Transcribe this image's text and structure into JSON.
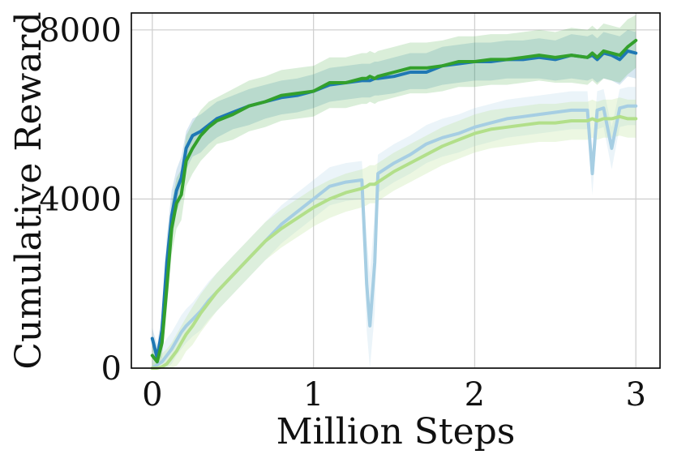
{
  "chart_data": {
    "type": "line",
    "title": "",
    "xlabel": "Million Steps",
    "ylabel": "Cumulative Reward",
    "xlim": [
      -0.13,
      3.15
    ],
    "ylim": [
      0,
      8400
    ],
    "xticks": [
      0,
      1,
      2,
      3
    ],
    "yticks": [
      0,
      4000,
      8000
    ],
    "xtick_labels": [
      "0",
      "1",
      "2",
      "3"
    ],
    "ytick_labels": [
      "0",
      "4000",
      "8000"
    ],
    "grid": true,
    "legend": "none",
    "bands": "shaded min-max range around each series",
    "x": [
      0.0,
      0.03,
      0.06,
      0.09,
      0.12,
      0.15,
      0.18,
      0.21,
      0.25,
      0.3,
      0.35,
      0.4,
      0.5,
      0.6,
      0.7,
      0.8,
      0.9,
      1.0,
      1.1,
      1.2,
      1.3,
      1.33,
      1.35,
      1.38,
      1.4,
      1.5,
      1.6,
      1.7,
      1.8,
      1.9,
      2.0,
      2.1,
      2.2,
      2.3,
      2.4,
      2.5,
      2.6,
      2.7,
      2.73,
      2.76,
      2.8,
      2.85,
      2.9,
      2.95,
      3.0
    ],
    "series": [
      {
        "color": "#1f78b4",
        "opacity": 1.0,
        "band_opacity": 0.18,
        "values": [
          700,
          250,
          900,
          2500,
          3600,
          4200,
          4500,
          5200,
          5500,
          5600,
          5750,
          5900,
          6050,
          6200,
          6300,
          6400,
          6450,
          6550,
          6700,
          6750,
          6800,
          6800,
          6800,
          6850,
          6850,
          6900,
          7000,
          7000,
          7150,
          7200,
          7250,
          7250,
          7300,
          7300,
          7350,
          7300,
          7400,
          7350,
          7400,
          7300,
          7450,
          7400,
          7300,
          7500,
          7450
        ],
        "lower": [
          450,
          0,
          500,
          1900,
          3000,
          3700,
          4000,
          4700,
          5000,
          5100,
          5300,
          5450,
          5650,
          5750,
          5900,
          6000,
          6050,
          6150,
          6300,
          6350,
          6400,
          6400,
          6400,
          6450,
          6450,
          6500,
          6600,
          6600,
          6700,
          6750,
          6800,
          6800,
          6850,
          6850,
          6850,
          6800,
          6850,
          6800,
          6850,
          6750,
          6850,
          6800,
          6700,
          6900,
          6850
        ],
        "upper": [
          950,
          550,
          1300,
          3100,
          4200,
          4700,
          5000,
          5600,
          5900,
          6000,
          6150,
          6300,
          6450,
          6600,
          6700,
          6800,
          6850,
          6950,
          7100,
          7150,
          7200,
          7200,
          7200,
          7250,
          7250,
          7350,
          7450,
          7450,
          7600,
          7650,
          7700,
          7700,
          7750,
          7750,
          7800,
          7750,
          7900,
          7850,
          7900,
          7800,
          7950,
          7900,
          7850,
          8000,
          7950
        ]
      },
      {
        "color": "#33a02c",
        "opacity": 1.0,
        "band_opacity": 0.18,
        "values": [
          300,
          150,
          600,
          1900,
          3300,
          3900,
          4100,
          4900,
          5200,
          5500,
          5700,
          5850,
          6000,
          6200,
          6300,
          6450,
          6500,
          6550,
          6750,
          6750,
          6850,
          6850,
          6900,
          6850,
          6900,
          7000,
          7100,
          7100,
          7150,
          7250,
          7250,
          7300,
          7300,
          7350,
          7400,
          7350,
          7400,
          7350,
          7450,
          7350,
          7500,
          7450,
          7400,
          7600,
          7750
        ],
        "lower": [
          0,
          0,
          250,
          1400,
          2700,
          3300,
          3500,
          4300,
          4600,
          4900,
          5100,
          5300,
          5400,
          5600,
          5700,
          5850,
          5900,
          5950,
          6150,
          6150,
          6250,
          6250,
          6300,
          6250,
          6300,
          6400,
          6500,
          6500,
          6550,
          6650,
          6650,
          6700,
          6700,
          6750,
          6800,
          6750,
          6750,
          6700,
          6800,
          6700,
          6850,
          6800,
          6750,
          6950,
          7100
        ],
        "upper": [
          650,
          450,
          1000,
          2400,
          3900,
          4500,
          4700,
          5500,
          5800,
          6100,
          6300,
          6400,
          6600,
          6800,
          6900,
          7050,
          7100,
          7150,
          7350,
          7350,
          7450,
          7450,
          7500,
          7450,
          7500,
          7600,
          7700,
          7700,
          7750,
          7850,
          7850,
          7900,
          7900,
          7950,
          8000,
          7950,
          8050,
          8000,
          8100,
          8000,
          8150,
          8100,
          8050,
          8250,
          8350
        ]
      },
      {
        "color": "#a6cee3",
        "opacity": 1.0,
        "band_opacity": 0.22,
        "values": [
          0,
          80,
          150,
          300,
          450,
          650,
          850,
          1000,
          1150,
          1350,
          1600,
          1800,
          2200,
          2600,
          3000,
          3400,
          3700,
          4000,
          4300,
          4400,
          4450,
          2000,
          1000,
          2500,
          4600,
          4850,
          5050,
          5300,
          5450,
          5550,
          5700,
          5800,
          5900,
          5950,
          6000,
          6050,
          6100,
          6100,
          4600,
          6100,
          6150,
          5200,
          6150,
          6200,
          6200
        ],
        "lower": [
          0,
          0,
          0,
          0,
          100,
          300,
          450,
          600,
          750,
          900,
          1150,
          1350,
          1750,
          2150,
          2550,
          2950,
          3250,
          3550,
          3850,
          3950,
          4000,
          900,
          0,
          1300,
          4150,
          4400,
          4600,
          4850,
          5000,
          5100,
          5250,
          5350,
          5450,
          5500,
          5550,
          5600,
          5650,
          5650,
          4100,
          5650,
          5700,
          4700,
          5700,
          5750,
          5750
        ],
        "upper": [
          150,
          350,
          500,
          700,
          850,
          1050,
          1250,
          1400,
          1550,
          1800,
          2050,
          2250,
          2650,
          3050,
          3450,
          3850,
          4150,
          4450,
          4750,
          4850,
          4900,
          3100,
          2200,
          3700,
          5050,
          5300,
          5500,
          5750,
          5900,
          6000,
          6150,
          6250,
          6350,
          6400,
          6450,
          6500,
          6550,
          6550,
          5100,
          6550,
          6600,
          5700,
          6600,
          6650,
          6650
        ]
      },
      {
        "color": "#b2df8a",
        "opacity": 1.0,
        "band_opacity": 0.25,
        "values": [
          0,
          0,
          30,
          100,
          250,
          400,
          600,
          800,
          1000,
          1300,
          1550,
          1800,
          2200,
          2600,
          3000,
          3300,
          3550,
          3800,
          4000,
          4150,
          4250,
          4300,
          4350,
          4350,
          4400,
          4650,
          4850,
          5050,
          5250,
          5400,
          5550,
          5650,
          5700,
          5750,
          5800,
          5800,
          5850,
          5850,
          5900,
          5850,
          5900,
          5900,
          5950,
          5900,
          5900
        ],
        "lower": [
          0,
          0,
          0,
          0,
          0,
          50,
          200,
          400,
          550,
          850,
          1100,
          1350,
          1750,
          2150,
          2550,
          2850,
          3100,
          3350,
          3550,
          3700,
          3800,
          3850,
          3900,
          3900,
          3950,
          4200,
          4400,
          4600,
          4800,
          4950,
          5100,
          5200,
          5250,
          5300,
          5350,
          5350,
          5400,
          5400,
          5450,
          5400,
          5450,
          5450,
          5500,
          5450,
          5450
        ],
        "upper": [
          100,
          200,
          350,
          450,
          600,
          800,
          1000,
          1200,
          1450,
          1750,
          2000,
          2250,
          2650,
          3050,
          3450,
          3750,
          4000,
          4250,
          4450,
          4600,
          4700,
          4750,
          4800,
          4800,
          4850,
          5100,
          5300,
          5500,
          5700,
          5850,
          6000,
          6100,
          6150,
          6200,
          6250,
          6250,
          6300,
          6300,
          6350,
          6300,
          6350,
          6350,
          6400,
          6350,
          6350
        ]
      }
    ]
  }
}
